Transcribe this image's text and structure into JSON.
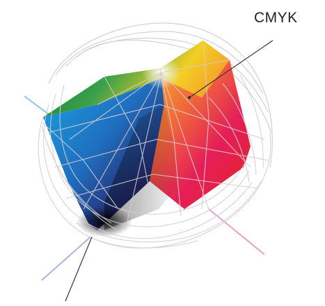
{
  "labels": {
    "cmyk": "CMYK"
  },
  "colors": {
    "cyan": "#1f9ad6",
    "blue": "#2a3b9a",
    "green": "#1f8a45",
    "yellow": "#f7d21c",
    "orange": "#f3a028",
    "magenta": "#e6176a",
    "red": "#e8212c",
    "black": "#111111",
    "white": "#ffffff",
    "wireframe": "#c9c3c8",
    "axis_cyan": "#86c8e8",
    "axis_magenta": "#e6a0c6",
    "axis_blue": "#a9b6e0",
    "leader_line": "#333333"
  }
}
